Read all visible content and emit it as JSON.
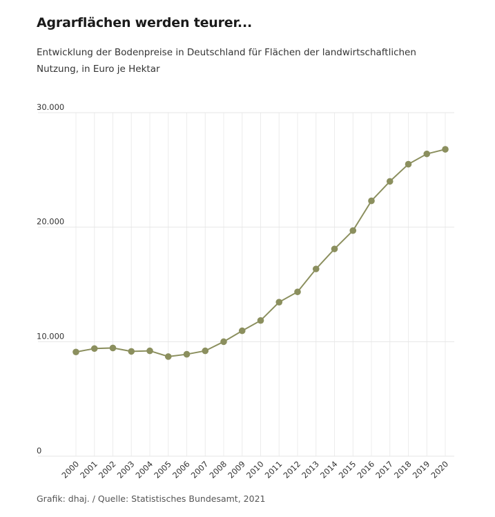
{
  "chart_data": {
    "type": "line",
    "title": "Agrarflächen werden teurer...",
    "subtitle": "Entwicklung der Bodenpreise in Deutschland  für Flächen der landwirtschaftlichen Nutzung, in Euro je Hektar",
    "source": "Grafik: dhaj. / Quelle: Statistisches Bundesamt, 2021",
    "xlabel": "",
    "ylabel": "",
    "ylim": [
      0,
      30000
    ],
    "yticks": [
      0,
      10000,
      20000,
      30000
    ],
    "ytick_labels": [
      "0",
      "10.000",
      "20.000",
      "30.000"
    ],
    "grid": "vertical and horizontal, light",
    "line_color": "#8b8f5e",
    "x": [
      "2000",
      "2001",
      "2002",
      "2003",
      "2004",
      "2005",
      "2006",
      "2007",
      "2008",
      "2009",
      "2010",
      "2011",
      "2012",
      "2013",
      "2014",
      "2015",
      "2016",
      "2017",
      "2018",
      "2019",
      "2020"
    ],
    "series": [
      {
        "values": [
          9100,
          9400,
          9450,
          9150,
          9200,
          8700,
          8900,
          9200,
          10000,
          10950,
          11850,
          13450,
          14350,
          16350,
          18100,
          19700,
          22300,
          24000,
          25500,
          26400,
          26800
        ]
      }
    ]
  }
}
